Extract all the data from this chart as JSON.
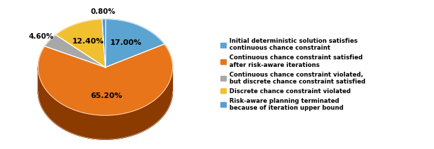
{
  "values": [
    17.0,
    65.2,
    4.6,
    12.4,
    0.8
  ],
  "labels": [
    "17.00%",
    "65.20%",
    "4.60%",
    "12.40%",
    "0.80%"
  ],
  "colors": [
    "#5ba3d0",
    "#e8751a",
    "#a8a8a8",
    "#f0c030",
    "#5b9bd5"
  ],
  "side_colors": [
    "#4080a0",
    "#8b3a00",
    "#707070",
    "#b08000",
    "#3b7bb5"
  ],
  "legend_labels": [
    "Initial deterministic solution satisfies\ncontinuous chance constraint",
    "Continuous chance constraint satisfied\nafter risk-aware iterations",
    "Continuous chance constraint violated,\nbut discrete chance constraint satisfied",
    "Discrete chance constraint violated",
    "Risk-aware planning terminated\nbecause of iteration upper bound"
  ],
  "figsize": [
    6.3,
    2.16
  ],
  "dpi": 100
}
